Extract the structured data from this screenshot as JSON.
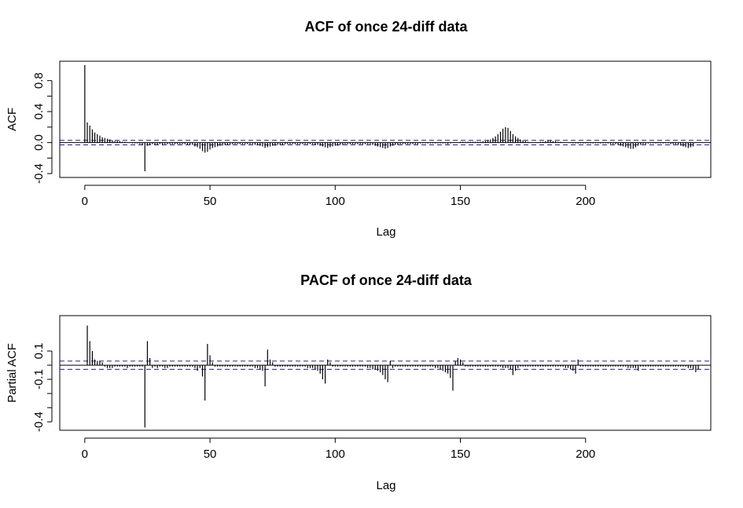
{
  "chart_data": [
    {
      "type": "bar",
      "kind": "acf",
      "title": "ACF of once 24-diff data",
      "xlabel": "Lag",
      "ylabel": "ACF",
      "xlim": [
        -10,
        250
      ],
      "ylim": [
        -0.45,
        1.05
      ],
      "xticks": [
        0,
        50,
        100,
        150,
        200
      ],
      "yticks": [
        -0.4,
        0.0,
        0.4,
        0.8
      ],
      "ci": 0.029,
      "max_lag": 240,
      "values": [
        1.0,
        0.26,
        0.22,
        0.17,
        0.13,
        0.11,
        0.09,
        0.07,
        0.06,
        0.05,
        0.04,
        0.03,
        0.02,
        0.02,
        0.02,
        0.01,
        0.01,
        0.0,
        0.0,
        -0.01,
        -0.01,
        -0.01,
        -0.02,
        -0.03,
        -0.37,
        -0.04,
        -0.03,
        -0.02,
        -0.03,
        -0.03,
        -0.02,
        -0.03,
        -0.02,
        -0.02,
        -0.02,
        -0.02,
        -0.02,
        -0.02,
        -0.02,
        -0.02,
        -0.02,
        -0.03,
        -0.03,
        -0.03,
        -0.05,
        -0.06,
        -0.08,
        -0.11,
        -0.13,
        -0.12,
        -0.09,
        -0.07,
        -0.06,
        -0.05,
        -0.04,
        -0.04,
        -0.03,
        -0.03,
        -0.03,
        -0.02,
        -0.02,
        -0.02,
        -0.02,
        -0.02,
        -0.02,
        -0.02,
        -0.02,
        -0.02,
        -0.03,
        -0.03,
        -0.04,
        -0.05,
        -0.07,
        -0.06,
        -0.05,
        -0.04,
        -0.04,
        -0.03,
        -0.03,
        -0.03,
        -0.02,
        -0.02,
        -0.02,
        -0.02,
        -0.02,
        -0.02,
        -0.02,
        -0.02,
        -0.02,
        -0.02,
        -0.02,
        -0.02,
        -0.03,
        -0.03,
        -0.04,
        -0.05,
        -0.06,
        -0.07,
        -0.06,
        -0.05,
        -0.04,
        -0.04,
        -0.03,
        -0.03,
        -0.02,
        -0.02,
        -0.02,
        -0.02,
        -0.02,
        -0.02,
        -0.02,
        -0.02,
        -0.02,
        -0.02,
        -0.02,
        -0.03,
        -0.04,
        -0.05,
        -0.06,
        -0.07,
        -0.08,
        -0.07,
        -0.05,
        -0.04,
        -0.03,
        -0.03,
        -0.02,
        -0.02,
        -0.02,
        -0.02,
        -0.02,
        -0.02,
        -0.02,
        -0.02,
        -0.01,
        -0.01,
        -0.01,
        -0.01,
        -0.01,
        -0.01,
        -0.01,
        -0.01,
        -0.01,
        -0.01,
        -0.01,
        -0.02,
        -0.01,
        0.0,
        0.0,
        0.0,
        0.01,
        0.01,
        0.01,
        0.01,
        0.01,
        0.01,
        0.01,
        0.01,
        0.01,
        0.02,
        0.02,
        0.03,
        0.04,
        0.06,
        0.08,
        0.11,
        0.14,
        0.18,
        0.2,
        0.19,
        0.15,
        0.11,
        0.08,
        0.06,
        0.04,
        0.03,
        0.02,
        0.01,
        0.0,
        0.0,
        0.0,
        0.0,
        0.01,
        0.01,
        0.02,
        0.03,
        0.03,
        0.02,
        0.02,
        0.01,
        0.01,
        0.0,
        0.0,
        0.0,
        0.0,
        -0.01,
        -0.01,
        -0.01,
        -0.01,
        -0.01,
        -0.01,
        -0.01,
        -0.01,
        -0.01,
        -0.01,
        -0.01,
        -0.01,
        -0.01,
        -0.01,
        -0.01,
        -0.02,
        -0.02,
        -0.02,
        -0.03,
        -0.04,
        -0.05,
        -0.06,
        -0.07,
        -0.08,
        -0.08,
        -0.06,
        -0.04,
        -0.03,
        -0.02,
        -0.02,
        -0.01,
        -0.01,
        -0.01,
        -0.01,
        -0.01,
        -0.01,
        -0.01,
        -0.01,
        -0.01,
        -0.02,
        -0.02,
        -0.02,
        -0.03,
        -0.04,
        -0.05,
        -0.06,
        -0.07,
        -0.06,
        -0.05
      ]
    },
    {
      "type": "bar",
      "kind": "pacf",
      "title": "PACF of once 24-diff data",
      "xlabel": "Lag",
      "ylabel": "Partial ACF",
      "xlim": [
        -10,
        250
      ],
      "ylim": [
        -0.46,
        0.35
      ],
      "xticks": [
        0,
        50,
        100,
        150,
        200
      ],
      "yticks": [
        -0.4,
        -0.1,
        0.1
      ],
      "ci": 0.029,
      "max_lag": 240,
      "values": [
        null,
        0.28,
        0.17,
        0.1,
        0.04,
        0.03,
        0.03,
        0.02,
        -0.01,
        -0.02,
        -0.02,
        -0.02,
        -0.01,
        -0.01,
        -0.01,
        -0.01,
        -0.01,
        -0.02,
        -0.01,
        -0.01,
        -0.01,
        -0.01,
        -0.01,
        -0.01,
        -0.44,
        0.17,
        0.05,
        -0.02,
        -0.01,
        -0.02,
        -0.01,
        -0.01,
        -0.02,
        -0.02,
        -0.01,
        -0.01,
        -0.01,
        -0.01,
        -0.01,
        -0.01,
        -0.01,
        -0.01,
        -0.01,
        -0.01,
        -0.02,
        -0.04,
        -0.02,
        -0.08,
        -0.25,
        0.15,
        0.07,
        0.02,
        -0.01,
        -0.01,
        -0.01,
        -0.01,
        -0.01,
        -0.01,
        -0.01,
        -0.01,
        -0.01,
        -0.01,
        -0.01,
        -0.01,
        -0.01,
        -0.01,
        -0.01,
        -0.01,
        -0.02,
        -0.02,
        -0.03,
        -0.04,
        -0.15,
        0.11,
        0.04,
        0.02,
        -0.01,
        -0.01,
        -0.01,
        -0.01,
        -0.01,
        -0.01,
        -0.01,
        -0.01,
        -0.01,
        -0.01,
        -0.01,
        -0.01,
        -0.01,
        -0.02,
        -0.02,
        -0.02,
        -0.03,
        -0.04,
        -0.06,
        -0.1,
        -0.13,
        0.04,
        0.02,
        -0.01,
        -0.01,
        -0.01,
        -0.01,
        -0.01,
        -0.01,
        -0.01,
        -0.01,
        -0.01,
        -0.01,
        -0.01,
        -0.01,
        -0.01,
        -0.01,
        -0.02,
        -0.02,
        -0.03,
        -0.03,
        -0.04,
        -0.05,
        -0.07,
        -0.1,
        -0.12,
        0.03,
        -0.02,
        -0.01,
        -0.01,
        -0.01,
        -0.01,
        -0.01,
        -0.01,
        -0.01,
        -0.01,
        -0.01,
        -0.01,
        -0.01,
        -0.01,
        -0.01,
        -0.01,
        -0.01,
        -0.01,
        -0.02,
        -0.02,
        -0.03,
        -0.04,
        -0.05,
        -0.06,
        -0.09,
        -0.18,
        0.03,
        0.05,
        0.04,
        0.02,
        -0.01,
        -0.01,
        -0.01,
        -0.01,
        -0.01,
        -0.01,
        -0.01,
        -0.01,
        -0.01,
        -0.01,
        -0.01,
        -0.01,
        -0.01,
        -0.01,
        -0.01,
        -0.02,
        -0.02,
        -0.02,
        -0.03,
        -0.07,
        -0.04,
        -0.02,
        -0.01,
        -0.01,
        -0.01,
        -0.01,
        -0.01,
        -0.01,
        -0.01,
        -0.01,
        -0.01,
        -0.01,
        -0.01,
        -0.01,
        -0.01,
        -0.01,
        -0.01,
        -0.01,
        -0.01,
        -0.01,
        -0.02,
        -0.02,
        -0.03,
        -0.04,
        -0.06,
        0.04,
        -0.01,
        -0.01,
        -0.01,
        -0.01,
        -0.01,
        -0.01,
        -0.01,
        -0.01,
        -0.01,
        -0.01,
        -0.01,
        -0.01,
        -0.01,
        -0.01,
        -0.01,
        -0.01,
        -0.01,
        -0.01,
        -0.01,
        -0.02,
        -0.02,
        -0.02,
        -0.02,
        -0.04,
        -0.01,
        -0.01,
        -0.01,
        -0.01,
        -0.01,
        -0.01,
        -0.01,
        -0.01,
        -0.01,
        -0.01,
        -0.01,
        -0.01,
        -0.01,
        -0.01,
        -0.01,
        -0.01,
        -0.01,
        -0.01,
        -0.01,
        -0.02,
        -0.02,
        -0.03,
        -0.05,
        -0.03
      ]
    }
  ]
}
